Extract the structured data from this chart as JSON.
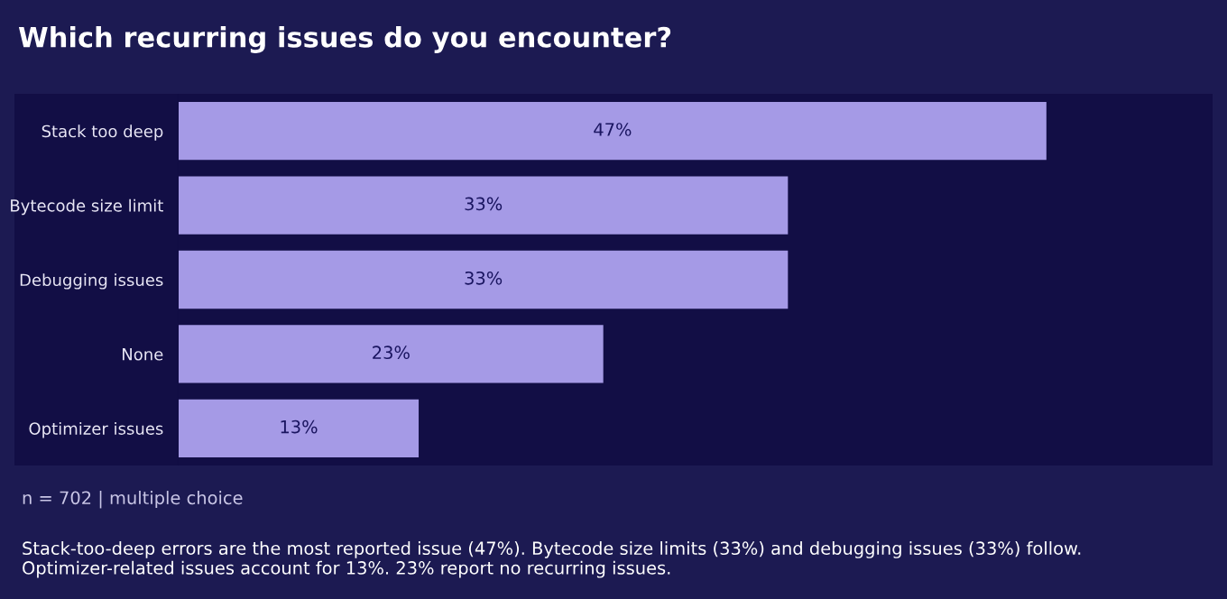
{
  "chart_data": {
    "type": "bar",
    "orientation": "horizontal",
    "title": "Which recurring issues do you encounter?",
    "categories": [
      "Stack too deep",
      "Bytecode size limit",
      "Debugging issues",
      "None",
      "Optimizer issues"
    ],
    "values": [
      47,
      33,
      33,
      23,
      13
    ],
    "color": "#a59ae6",
    "value_labels": [
      "47%",
      "33%",
      "33%",
      "23%",
      "13%"
    ],
    "xlim": [
      0,
      56
    ],
    "grid": false,
    "legend": false,
    "annotations": [
      "n = 702 | multiple choice",
      "Stack-too-deep errors are the most reported issue (47%). Bytecode size limits (33%) and debugging issues (33%) follow. Optimizer-related issues account for 13%. 23% report no recurring issues."
    ]
  }
}
